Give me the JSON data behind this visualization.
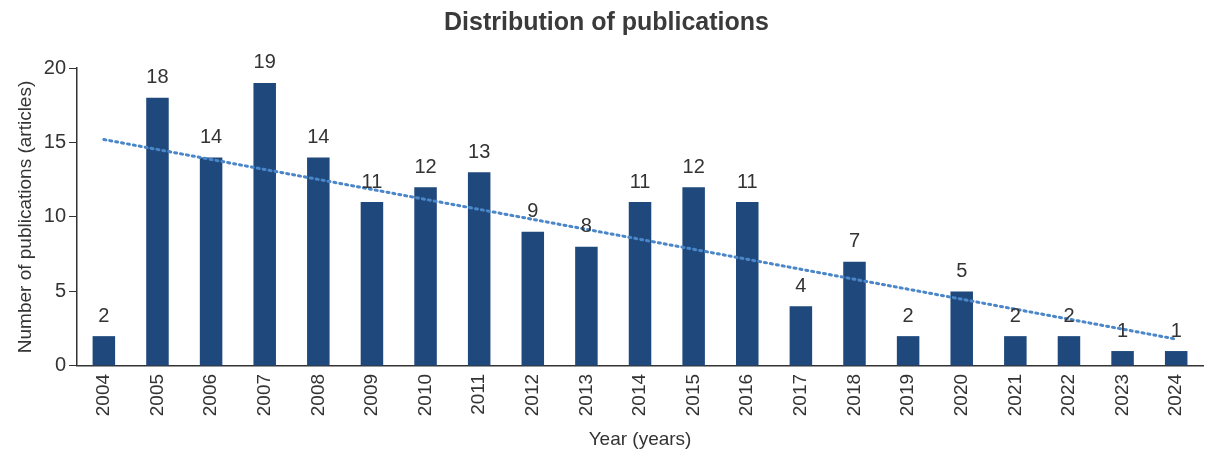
{
  "chart_data": {
    "type": "bar",
    "title": "Distribution of publications",
    "xlabel": "Year (years)",
    "ylabel": "Number of publications (articles)",
    "categories": [
      "2004",
      "2005",
      "2006",
      "2007",
      "2008",
      "2009",
      "2010",
      "2011",
      "2012",
      "2013",
      "2014",
      "2015",
      "2016",
      "2017",
      "2018",
      "2019",
      "2020",
      "2021",
      "2022",
      "2023",
      "2024"
    ],
    "series": [
      {
        "color": "#1f497d",
        "values": [
          2,
          18,
          14,
          19,
          14,
          11,
          12,
          13,
          9,
          8,
          11,
          12,
          11,
          4,
          7,
          2,
          5,
          2,
          2,
          1,
          1
        ],
        "value_labels": [
          "2",
          "18",
          "14",
          "19",
          "14",
          "11",
          "12",
          "13",
          "9",
          "8",
          "11",
          "12",
          "11",
          "4",
          "7",
          "2",
          "5",
          "2",
          "2",
          "1",
          "1"
        ]
      },
      {
        "type": "line",
        "color": "#4a86c8",
        "line_style": "dotted",
        "marker": "none",
        "values": [
          15.2,
          null,
          null,
          null,
          null,
          null,
          null,
          null,
          null,
          null,
          null,
          null,
          null,
          null,
          null,
          null,
          null,
          null,
          null,
          null,
          1.8
        ]
      }
    ],
    "ylim": [
      0,
      20
    ],
    "yticks": [
      0,
      5,
      10,
      15,
      20
    ],
    "grid": false,
    "legend": false
  }
}
